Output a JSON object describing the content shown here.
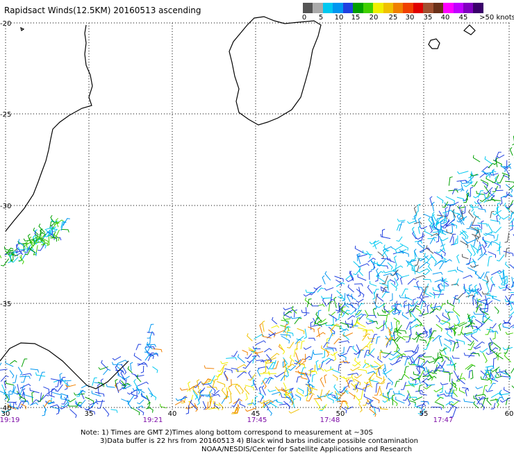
{
  "title": "Rapidsact Winds(12.5KM) 20160513 ascending",
  "colorbar": {
    "colors": [
      "#555555",
      "#aaaaaa",
      "#00c8f0",
      "#0096f0",
      "#2040e0",
      "#00a000",
      "#40d000",
      "#f0f000",
      "#f0c000",
      "#f08000",
      "#f04000",
      "#e00000",
      "#a05030",
      "#6a3018",
      "#ff00ff",
      "#c000ff",
      "#8000c0",
      "#3a006a"
    ],
    "labels": [
      "0",
      "5",
      "10",
      "15",
      "20",
      "25",
      "30",
      "35",
      "40",
      "45",
      ">50 knots"
    ]
  },
  "map": {
    "lat_labels": [
      "-20",
      "-25",
      "-30",
      "-35",
      "-40"
    ],
    "lon_labels": [
      "30",
      "35",
      "40",
      "45",
      "50",
      "55",
      "60"
    ],
    "time_labels": [
      "19:19",
      "19:21",
      "17:45",
      "17:48",
      "17:47"
    ],
    "coastline_color": "#000000"
  },
  "notes": {
    "line1": "Note: 1) Times are GMT 2)Times along bottom correspond to measurement at ~30S",
    "line2": "3)Data buffer is 22 hrs from 20160513 4) Black wind barbs indicate possible contamination",
    "line3": "NOAA/NESDIS/Center for Satellite Applications and Research"
  }
}
